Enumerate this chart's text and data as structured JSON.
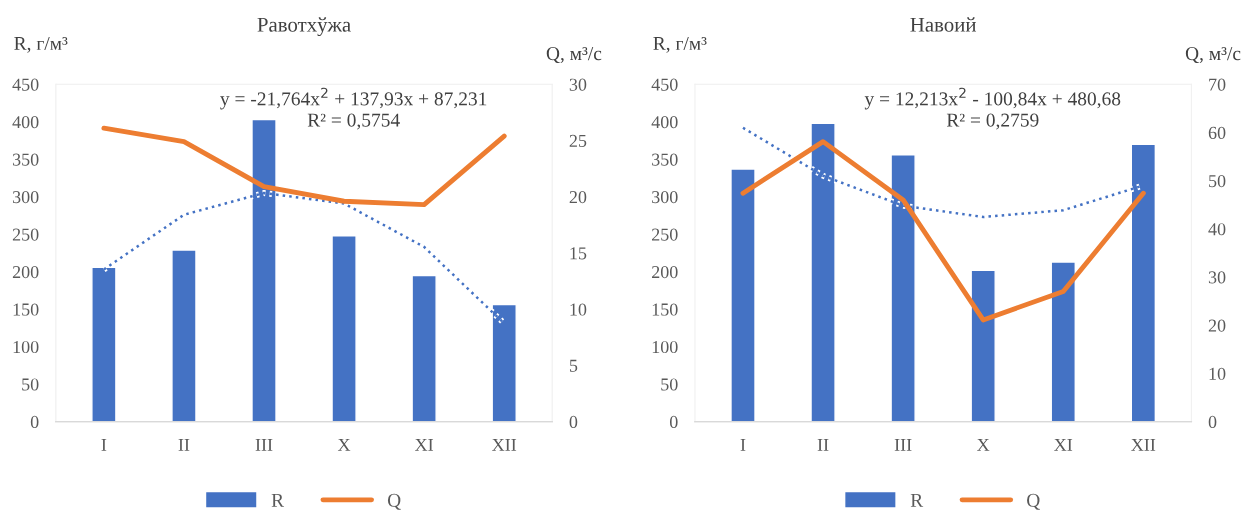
{
  "chart_data": [
    {
      "type": "bar",
      "title": "Равотхўжа",
      "ylabel": "R, г/м³",
      "y2label": "Q, м³/с",
      "categories": [
        "I",
        "II",
        "III",
        "X",
        "XI",
        "XII"
      ],
      "series": [
        {
          "name": "R",
          "color": "#4472c4",
          "values": [
            206,
            229,
            403,
            248,
            195,
            156
          ]
        },
        {
          "name": "Q",
          "type": "line",
          "axis": "y2",
          "color": "#ed7d31",
          "values": [
            26.1,
            24.9,
            20.9,
            19.6,
            19.3,
            25.4
          ]
        },
        {
          "type": "line",
          "line_style": "dotted",
          "color": "#4472c4",
          "x": [
            "I",
            "II",
            "III",
            "X",
            "XI",
            "XII"
          ],
          "values": [
            203,
            276,
            305,
            291,
            233,
            131
          ]
        }
      ],
      "annotations": [
        "y = -21,764x$^{2}$ + 137,93x + 87,231",
        "R² = 0,5754"
      ],
      "ylim": [
        0,
        450
      ],
      "yticks": [
        0,
        50,
        100,
        150,
        200,
        250,
        300,
        350,
        400,
        450
      ],
      "y2lim": [
        0,
        30
      ],
      "y2ticks": [
        0,
        5,
        10,
        15,
        20,
        25,
        30
      ],
      "grid": false,
      "legend": "bottom"
    },
    {
      "type": "bar",
      "title": "Навоий",
      "ylabel": "R, г/м³",
      "y2label": "Q, м³/с",
      "categories": [
        "I",
        "II",
        "III",
        "X",
        "XI",
        "XII"
      ],
      "series": [
        {
          "name": "R",
          "color": "#4472c4",
          "values": [
            337,
            398,
            356,
            202,
            213,
            370
          ]
        },
        {
          "name": "Q",
          "type": "line",
          "axis": "y2",
          "color": "#ed7d31",
          "values": [
            47.4,
            58.1,
            46,
            21.1,
            27,
            47.4
          ]
        },
        {
          "type": "line",
          "line_style": "dotted",
          "color": "#4472c4",
          "x": [
            "I",
            "II",
            "III",
            "X",
            "XI",
            "XII"
          ],
          "values": [
            392,
            328,
            288,
            273,
            282,
            315
          ]
        }
      ],
      "annotations": [
        "y = 12,213x$^{2}$ - 100,84x + 480,68",
        "R² = 0,2759"
      ],
      "ylim": [
        0,
        450
      ],
      "yticks": [
        0,
        50,
        100,
        150,
        200,
        250,
        300,
        350,
        400,
        450
      ],
      "y2lim": [
        0,
        70
      ],
      "y2ticks": [
        0,
        10,
        20,
        30,
        40,
        50,
        60,
        70
      ],
      "grid": false,
      "legend": "bottom"
    }
  ]
}
